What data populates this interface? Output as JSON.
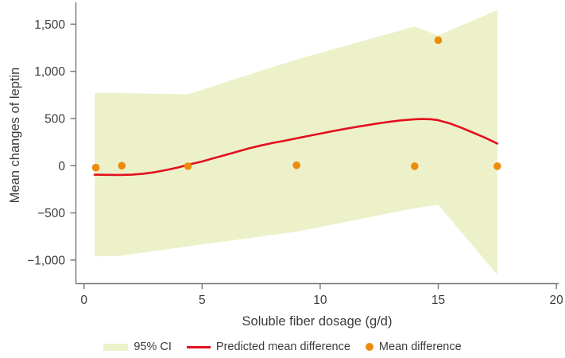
{
  "style": {
    "axis_color": "#767676",
    "text_color": "#3c3c3c",
    "background": "#ffffff"
  },
  "chart_data": {
    "type": "line",
    "title": "",
    "xlabel": "Soluble fiber dosage (g/d)",
    "ylabel": "Mean changes of leptin",
    "xlim": [
      0,
      20.3
    ],
    "ylim": [
      -1250,
      1700
    ],
    "grid": false,
    "legend_position": "bottom",
    "x_ticks": [
      {
        "v": 0,
        "label": "0"
      },
      {
        "v": 5,
        "label": "5"
      },
      {
        "v": 10,
        "label": "10"
      },
      {
        "v": 15,
        "label": "15"
      },
      {
        "v": 20,
        "label": "20"
      }
    ],
    "y_ticks": [
      {
        "v": 1500,
        "label": "1,500"
      },
      {
        "v": 1000,
        "label": "1,000"
      },
      {
        "v": 500,
        "label": "500"
      },
      {
        "v": 0,
        "label": "0"
      },
      {
        "v": -500,
        "label": "−500"
      },
      {
        "v": -1000,
        "label": "−1,000"
      }
    ],
    "series": [
      {
        "name": "95% CI",
        "type": "band",
        "color": "#edf1c9",
        "upper": [
          [
            0.45,
            770
          ],
          [
            1.5,
            770
          ],
          [
            4.4,
            757
          ],
          [
            9,
            1125
          ],
          [
            14,
            1475
          ],
          [
            15,
            1380
          ],
          [
            17.5,
            1650
          ]
        ],
        "lower": [
          [
            0.45,
            -960
          ],
          [
            1.5,
            -955
          ],
          [
            4.4,
            -855
          ],
          [
            9,
            -700
          ],
          [
            14,
            -450
          ],
          [
            15,
            -415
          ],
          [
            17.5,
            -1155
          ]
        ]
      },
      {
        "name": "Predicted mean difference",
        "type": "line",
        "color": "#e3101e",
        "width": 2.6,
        "points": [
          [
            0.45,
            -95
          ],
          [
            1,
            -97
          ],
          [
            1.5,
            -98
          ],
          [
            2,
            -95
          ],
          [
            2.5,
            -85
          ],
          [
            3,
            -68
          ],
          [
            3.5,
            -45
          ],
          [
            4,
            -18
          ],
          [
            4.4,
            10
          ],
          [
            5,
            45
          ],
          [
            5.5,
            80
          ],
          [
            6,
            115
          ],
          [
            6.5,
            150
          ],
          [
            7,
            185
          ],
          [
            7.5,
            215
          ],
          [
            8,
            242
          ],
          [
            8.5,
            265
          ],
          [
            9,
            290
          ],
          [
            9.5,
            315
          ],
          [
            10,
            340
          ],
          [
            10.5,
            365
          ],
          [
            11,
            388
          ],
          [
            11.5,
            410
          ],
          [
            12,
            430
          ],
          [
            12.5,
            450
          ],
          [
            13,
            468
          ],
          [
            13.5,
            482
          ],
          [
            14,
            492
          ],
          [
            14.3,
            495
          ],
          [
            14.7,
            492
          ],
          [
            15,
            482
          ],
          [
            15.5,
            448
          ],
          [
            16,
            400
          ],
          [
            16.5,
            348
          ],
          [
            17,
            295
          ],
          [
            17.5,
            235
          ]
        ]
      },
      {
        "name": "Mean difference",
        "type": "scatter",
        "color": "#ee8b0b",
        "radius": 4.8,
        "points": [
          [
            0.5,
            -20
          ],
          [
            1.6,
            0
          ],
          [
            4.4,
            -5
          ],
          [
            9,
            5
          ],
          [
            14,
            -5
          ],
          [
            15,
            1330
          ],
          [
            17.5,
            -5
          ]
        ]
      }
    ]
  },
  "legend": {
    "items": [
      {
        "label": "95% CI",
        "marker": "band",
        "color": "#edf1c9"
      },
      {
        "label": "Predicted mean difference",
        "marker": "line",
        "color": "#e3101e"
      },
      {
        "label": "Mean difference",
        "marker": "dot",
        "color": "#ee8b0b"
      }
    ]
  }
}
